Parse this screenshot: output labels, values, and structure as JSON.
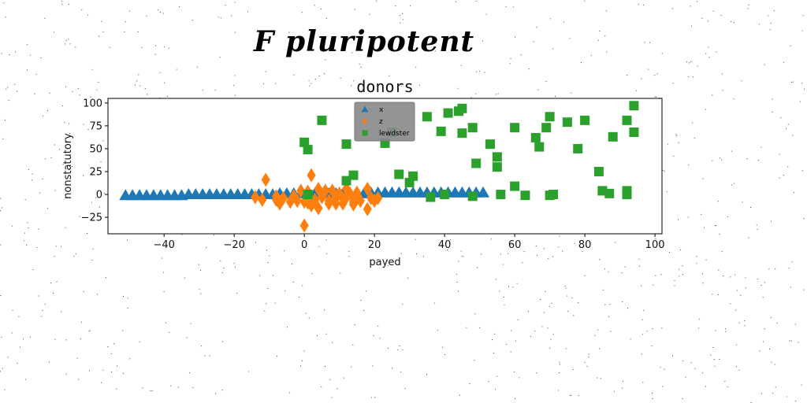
{
  "header": {
    "title": "F pluripotent"
  },
  "chart_data": {
    "type": "scatter",
    "title": "donors",
    "xlabel": "payed",
    "ylabel": "nonstatutory",
    "xlim": [
      -56,
      102
    ],
    "ylim": [
      -43,
      105
    ],
    "xticks": [
      -40,
      -20,
      0,
      20,
      40,
      60,
      80,
      100
    ],
    "yticks": [
      -25,
      0,
      25,
      50,
      75,
      100
    ],
    "grid": false,
    "legend_position": "top-center",
    "series": [
      {
        "name": "x",
        "marker": "triangle",
        "color": "#1f77b4",
        "points": [
          [
            -51,
            -1
          ],
          [
            -49,
            -1
          ],
          [
            -47,
            -1
          ],
          [
            -45,
            -1
          ],
          [
            -43,
            -1
          ],
          [
            -41,
            -1
          ],
          [
            -39,
            -1
          ],
          [
            -37,
            -1
          ],
          [
            -35,
            -1
          ],
          [
            -33,
            0
          ],
          [
            -31,
            0
          ],
          [
            -29,
            0
          ],
          [
            -27,
            0
          ],
          [
            -25,
            0
          ],
          [
            -23,
            0
          ],
          [
            -21,
            0
          ],
          [
            -19,
            0
          ],
          [
            -17,
            0
          ],
          [
            -15,
            0
          ],
          [
            -13,
            0
          ],
          [
            -11,
            0
          ],
          [
            -9,
            0
          ],
          [
            -7,
            1
          ],
          [
            -5,
            1
          ],
          [
            -3,
            1
          ],
          [
            -1,
            1
          ],
          [
            1,
            1
          ],
          [
            3,
            1
          ],
          [
            5,
            1
          ],
          [
            7,
            1
          ],
          [
            9,
            1
          ],
          [
            11,
            1
          ],
          [
            13,
            1
          ],
          [
            15,
            1
          ],
          [
            17,
            1
          ],
          [
            19,
            2
          ],
          [
            21,
            2
          ],
          [
            23,
            2
          ],
          [
            25,
            2
          ],
          [
            27,
            2
          ],
          [
            29,
            2
          ],
          [
            31,
            2
          ],
          [
            33,
            2
          ],
          [
            35,
            2
          ],
          [
            37,
            2
          ],
          [
            39,
            2
          ],
          [
            41,
            2
          ],
          [
            43,
            2
          ],
          [
            45,
            2
          ],
          [
            47,
            2
          ],
          [
            49,
            2
          ],
          [
            51,
            2
          ]
        ]
      },
      {
        "name": "z",
        "marker": "diamond",
        "color": "#ff7f0e",
        "points": [
          [
            -14,
            -3
          ],
          [
            -12,
            -6
          ],
          [
            -11,
            16
          ],
          [
            -8,
            -2
          ],
          [
            -8,
            -6
          ],
          [
            -7,
            -10
          ],
          [
            -6,
            -4
          ],
          [
            -4,
            -8
          ],
          [
            -3,
            -2
          ],
          [
            -2,
            -7
          ],
          [
            -1,
            4
          ],
          [
            0,
            -8
          ],
          [
            0,
            -34
          ],
          [
            1,
            -9
          ],
          [
            1,
            3
          ],
          [
            2,
            21
          ],
          [
            2,
            -12
          ],
          [
            3,
            -6
          ],
          [
            4,
            -15
          ],
          [
            4,
            6
          ],
          [
            5,
            -3
          ],
          [
            6,
            4
          ],
          [
            7,
            -7
          ],
          [
            7,
            -10
          ],
          [
            8,
            4
          ],
          [
            9,
            -10
          ],
          [
            9,
            -4
          ],
          [
            10,
            1
          ],
          [
            11,
            -10
          ],
          [
            11,
            -5
          ],
          [
            12,
            6
          ],
          [
            12,
            -3
          ],
          [
            13,
            1
          ],
          [
            14,
            -8
          ],
          [
            14,
            -11
          ],
          [
            15,
            2
          ],
          [
            15,
            -4
          ],
          [
            16,
            -7
          ],
          [
            18,
            -16
          ],
          [
            18,
            6
          ],
          [
            19,
            -4
          ],
          [
            20,
            -7
          ],
          [
            21,
            -4
          ]
        ]
      },
      {
        "name": "lewdster",
        "marker": "square",
        "color": "#2ca02c",
        "points": [
          [
            0,
            57
          ],
          [
            1,
            49
          ],
          [
            1,
            0
          ],
          [
            5,
            81
          ],
          [
            12,
            55
          ],
          [
            12,
            15
          ],
          [
            14,
            21
          ],
          [
            23,
            56
          ],
          [
            25,
            68
          ],
          [
            27,
            22
          ],
          [
            30,
            13
          ],
          [
            31,
            20
          ],
          [
            35,
            85
          ],
          [
            36,
            -3
          ],
          [
            39,
            69
          ],
          [
            40,
            0
          ],
          [
            41,
            89
          ],
          [
            44,
            91
          ],
          [
            45,
            94
          ],
          [
            45,
            67
          ],
          [
            48,
            73
          ],
          [
            48,
            -2
          ],
          [
            49,
            34
          ],
          [
            53,
            55
          ],
          [
            55,
            41
          ],
          [
            55,
            30
          ],
          [
            56,
            0
          ],
          [
            60,
            73
          ],
          [
            60,
            9
          ],
          [
            63,
            -1
          ],
          [
            66,
            62
          ],
          [
            67,
            52
          ],
          [
            69,
            73
          ],
          [
            70,
            85
          ],
          [
            70,
            -1
          ],
          [
            71,
            0
          ],
          [
            75,
            79
          ],
          [
            78,
            50
          ],
          [
            80,
            81
          ],
          [
            84,
            25
          ],
          [
            85,
            4
          ],
          [
            87,
            1
          ],
          [
            88,
            63
          ],
          [
            92,
            81
          ],
          [
            92,
            4
          ],
          [
            92,
            0
          ],
          [
            94,
            97
          ],
          [
            94,
            68
          ]
        ]
      }
    ]
  }
}
